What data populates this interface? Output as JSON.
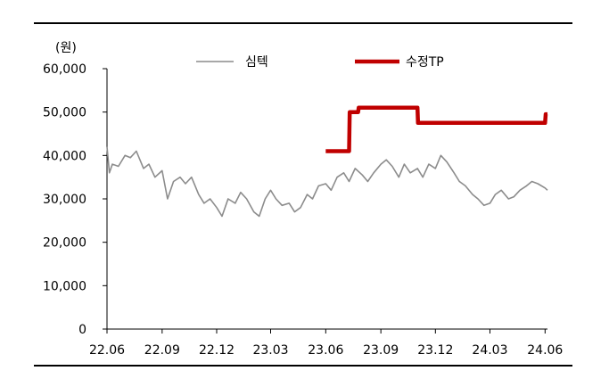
{
  "chart_data": {
    "type": "line",
    "y_unit": "(원)",
    "ylim": [
      0,
      60000
    ],
    "y_ticks": [
      "0",
      "10,000",
      "20,000",
      "30,000",
      "40,000",
      "50,000",
      "60,000"
    ],
    "x_ticks": [
      "22.06",
      "22.09",
      "22.12",
      "23.03",
      "23.06",
      "23.09",
      "23.12",
      "24.03",
      "24.06"
    ],
    "grid": false,
    "legend_position": "top",
    "series": [
      {
        "name": "심텍",
        "color": "#8c8c8c",
        "x": [
          "2022-06-01",
          "2022-06-05",
          "2022-06-10",
          "2022-06-20",
          "2022-07-01",
          "2022-07-10",
          "2022-07-20",
          "2022-08-01",
          "2022-08-10",
          "2022-08-20",
          "2022-09-01",
          "2022-09-10",
          "2022-09-20",
          "2022-10-01",
          "2022-10-10",
          "2022-10-20",
          "2022-11-01",
          "2022-11-10",
          "2022-11-20",
          "2022-12-01",
          "2022-12-10",
          "2022-12-20",
          "2023-01-01",
          "2023-01-10",
          "2023-01-20",
          "2023-02-01",
          "2023-02-10",
          "2023-02-20",
          "2023-03-01",
          "2023-03-10",
          "2023-03-20",
          "2023-04-01",
          "2023-04-10",
          "2023-04-20",
          "2023-05-01",
          "2023-05-10",
          "2023-05-20",
          "2023-06-01",
          "2023-06-10",
          "2023-06-20",
          "2023-07-01",
          "2023-07-10",
          "2023-07-20",
          "2023-08-01",
          "2023-08-10",
          "2023-08-20",
          "2023-09-01",
          "2023-09-10",
          "2023-09-20",
          "2023-10-01",
          "2023-10-10",
          "2023-10-20",
          "2023-11-01",
          "2023-11-10",
          "2023-11-20",
          "2023-12-01",
          "2023-12-10",
          "2023-12-20",
          "2024-01-01",
          "2024-01-10",
          "2024-01-20",
          "2024-02-01",
          "2024-02-10",
          "2024-02-20",
          "2024-03-01",
          "2024-03-10",
          "2024-03-20",
          "2024-04-01",
          "2024-04-10",
          "2024-04-20",
          "2024-05-01",
          "2024-05-10",
          "2024-05-20",
          "2024-06-01",
          "2024-06-05"
        ],
        "values": [
          42000,
          36000,
          38000,
          37500,
          40000,
          39500,
          41000,
          37000,
          38000,
          35000,
          36500,
          30000,
          34000,
          35000,
          33500,
          35000,
          31000,
          29000,
          30000,
          28000,
          26000,
          30000,
          29000,
          31500,
          30000,
          27000,
          26000,
          30000,
          32000,
          30000,
          28500,
          29000,
          27000,
          28000,
          31000,
          30000,
          33000,
          33500,
          32000,
          35000,
          36000,
          34000,
          37000,
          35500,
          34000,
          36000,
          38000,
          39000,
          37500,
          35000,
          38000,
          36000,
          37000,
          35000,
          38000,
          37000,
          40000,
          38500,
          36000,
          34000,
          33000,
          31000,
          30000,
          28500,
          29000,
          31000,
          32000,
          30000,
          30500,
          32000,
          33000,
          34000,
          33500,
          32500,
          32000
        ]
      },
      {
        "name": "수정TP",
        "color": "#c00000",
        "x": [
          "2023-06-01",
          "2023-07-10",
          "2023-07-11",
          "2023-07-25",
          "2023-07-26",
          "2023-11-01",
          "2023-11-02",
          "2024-06-01",
          "2024-06-02",
          "2024-06-05"
        ],
        "values": [
          41000,
          41000,
          50000,
          50000,
          51000,
          51000,
          47500,
          47500,
          49500,
          49500
        ]
      }
    ]
  }
}
